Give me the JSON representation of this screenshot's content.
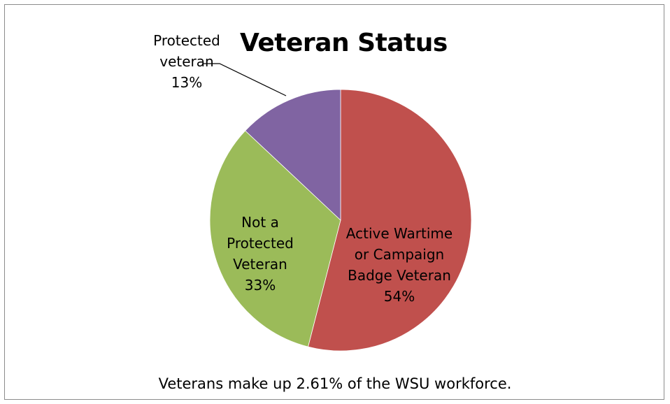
{
  "chart_data": {
    "type": "pie",
    "title": "Veteran Status",
    "slices": [
      {
        "label_lines": [
          "Active Wartime",
          "or Campaign",
          "Badge Veteran"
        ],
        "percent_label": "54%",
        "value": 54,
        "color": "#c0504d"
      },
      {
        "label_lines": [
          "Not a",
          "Protected",
          "Veteran"
        ],
        "percent_label": "33%",
        "value": 33,
        "color": "#9bbb59"
      },
      {
        "label_lines": [
          "Protected",
          "veteran"
        ],
        "percent_label": "13%",
        "value": 13,
        "color": "#8064a2"
      }
    ],
    "start": "12 o'clock",
    "direction": "clockwise",
    "legend": "none"
  },
  "footnote": "Veterans make up 2.61% of the WSU workforce."
}
